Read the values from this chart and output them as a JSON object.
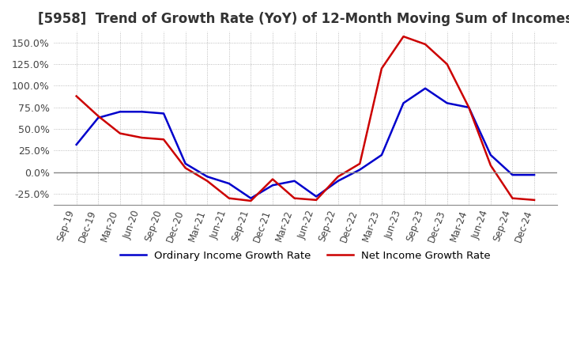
{
  "title": "[5958]  Trend of Growth Rate (YoY) of 12-Month Moving Sum of Incomes",
  "title_fontsize": 12,
  "ylim": [
    -37.5,
    162.5
  ],
  "yticks": [
    -25.0,
    0.0,
    25.0,
    50.0,
    75.0,
    100.0,
    125.0,
    150.0
  ],
  "ytick_labels": [
    "-25.0%",
    "0.0%",
    "25.0%",
    "50.0%",
    "75.0%",
    "100.0%",
    "125.0%",
    "150.0%"
  ],
  "background_color": "#ffffff",
  "plot_bg_color": "#ffffff",
  "grid_color": "#aaaaaa",
  "x_labels": [
    "Sep-19",
    "Dec-19",
    "Mar-20",
    "Jun-20",
    "Sep-20",
    "Dec-20",
    "Mar-21",
    "Jun-21",
    "Sep-21",
    "Dec-21",
    "Mar-22",
    "Jun-22",
    "Sep-22",
    "Dec-22",
    "Mar-23",
    "Jun-23",
    "Sep-23",
    "Dec-23",
    "Mar-24",
    "Jun-24",
    "Sep-24",
    "Dec-24"
  ],
  "ordinary_income": [
    32.0,
    63.0,
    70.0,
    70.0,
    68.0,
    10.0,
    -5.0,
    -13.0,
    -30.0,
    -15.0,
    -10.0,
    -28.0,
    -10.0,
    3.0,
    20.0,
    80.0,
    97.0,
    80.0,
    75.0,
    20.0,
    -3.0,
    -3.0
  ],
  "net_income": [
    88.0,
    65.0,
    45.0,
    40.0,
    38.0,
    5.0,
    -10.0,
    -30.0,
    -33.0,
    -8.0,
    -30.0,
    -32.0,
    -5.0,
    10.0,
    120.0,
    157.0,
    148.0,
    125.0,
    75.0,
    8.0,
    -30.0,
    -32.0
  ],
  "ordinary_color": "#0000cc",
  "net_color": "#cc0000",
  "line_width": 1.8,
  "legend_ordinary": "Ordinary Income Growth Rate",
  "legend_net": "Net Income Growth Rate"
}
